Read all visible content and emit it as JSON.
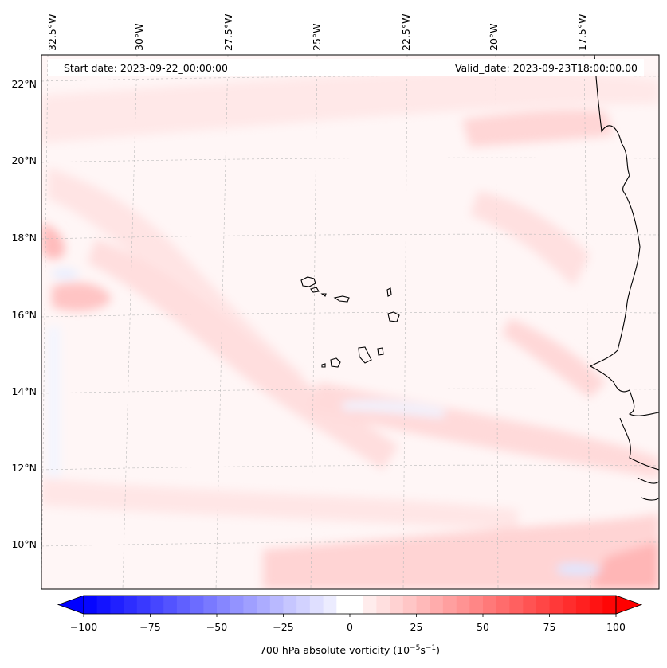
{
  "header": {
    "start_date": "Start date: 2023-09-22_00:00:00",
    "valid_date": "Valid_date: 2023-09-23T18:00:00.00"
  },
  "map": {
    "lon_labels": [
      "32.5°W",
      "30°W",
      "27.5°W",
      "25°W",
      "22.5°W",
      "20°W",
      "17.5°W"
    ],
    "lat_labels": [
      "22°N",
      "20°N",
      "18°N",
      "16°N",
      "14°N",
      "12°N",
      "10°N"
    ],
    "gridlines": true,
    "field_colors": {
      "negative": "#0000ff",
      "neutral": "#ffffff",
      "positive": "#ff0000"
    }
  },
  "colorbar": {
    "label_prefix": "700 hPa absolute vorticity (10",
    "label_exp1": "−5",
    "label_mid": "s",
    "label_exp2": "−1",
    "label_suffix": ")",
    "range": [
      -100,
      100
    ],
    "ticks": [
      "−100",
      "−75",
      "−50",
      "−25",
      "0",
      "25",
      "50",
      "75",
      "100"
    ],
    "extend": "both"
  }
}
